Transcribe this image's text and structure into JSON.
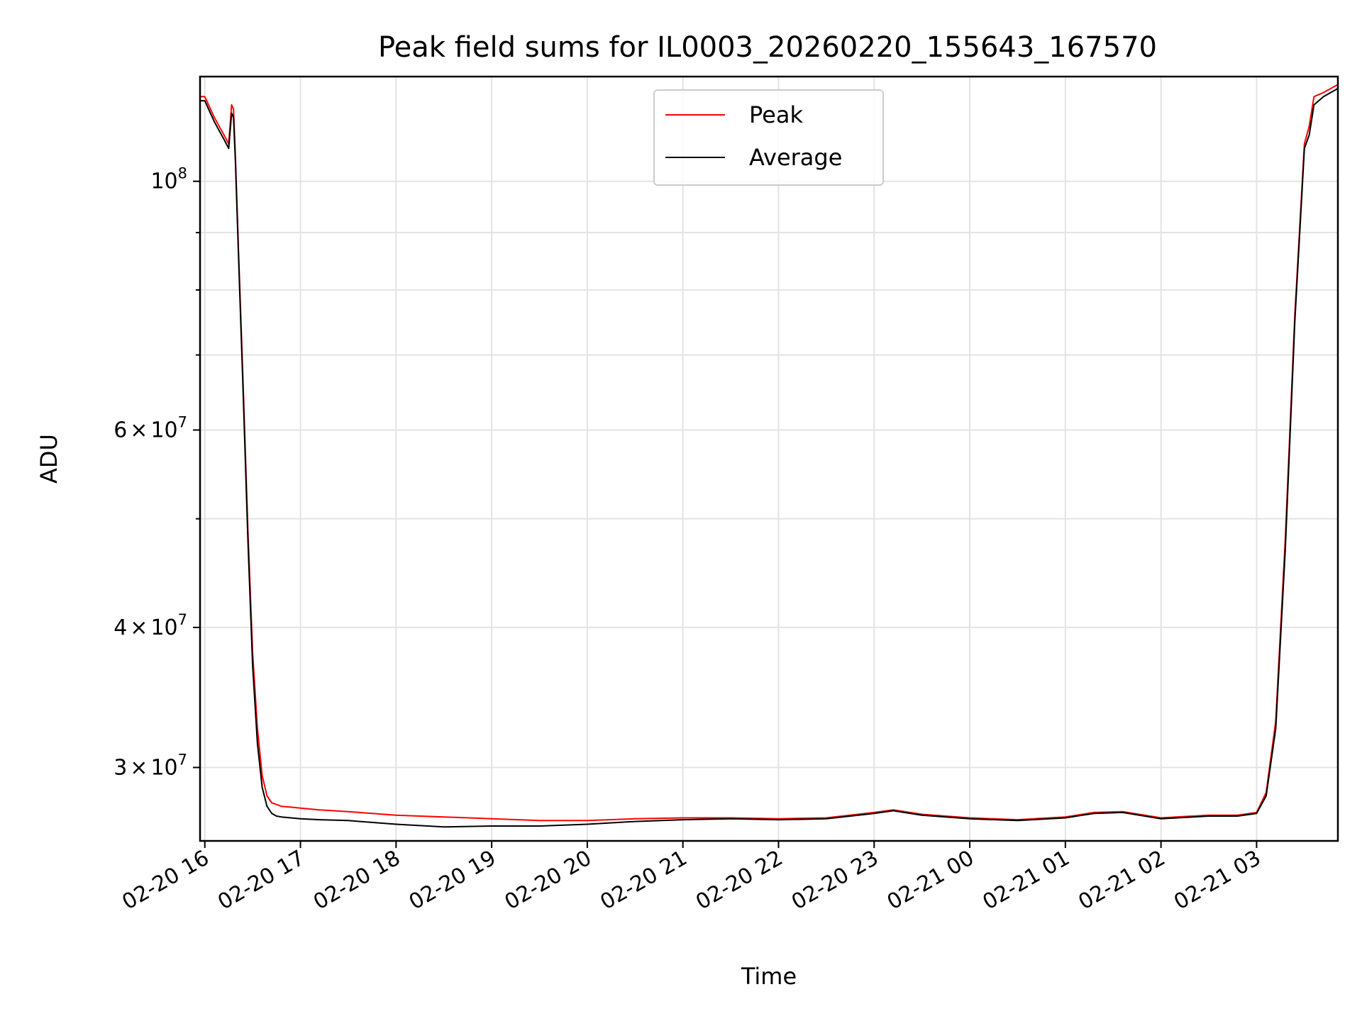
{
  "chart_data": {
    "type": "line",
    "title": "Peak field sums for IL0003_20260220_155643_167570",
    "xlabel": "Time",
    "ylabel": "ADU",
    "yscale": "log",
    "grid": true,
    "legend_position": "top-center",
    "x_unit": "hours since 02-20 16:00",
    "xlim": [
      -0.05,
      11.85
    ],
    "ylim": [
      25800000,
      124000000
    ],
    "x_ticks": [
      {
        "value": 0,
        "label": "02-20 16"
      },
      {
        "value": 1,
        "label": "02-20 17"
      },
      {
        "value": 2,
        "label": "02-20 18"
      },
      {
        "value": 3,
        "label": "02-20 19"
      },
      {
        "value": 4,
        "label": "02-20 20"
      },
      {
        "value": 5,
        "label": "02-20 21"
      },
      {
        "value": 6,
        "label": "02-20 22"
      },
      {
        "value": 7,
        "label": "02-20 23"
      },
      {
        "value": 8,
        "label": "02-21 00"
      },
      {
        "value": 9,
        "label": "02-21 01"
      },
      {
        "value": 10,
        "label": "02-21 02"
      },
      {
        "value": 11,
        "label": "02-21 03"
      }
    ],
    "y_major_ticks": [
      {
        "value": 30000000,
        "mantissa": "3",
        "exponent": "7"
      },
      {
        "value": 40000000,
        "mantissa": "4",
        "exponent": "7"
      },
      {
        "value": 60000000,
        "mantissa": "6",
        "exponent": "7"
      },
      {
        "value": 100000000,
        "mantissa": "",
        "exponent": "8"
      }
    ],
    "y_minor_ticks": [
      50000000,
      70000000,
      80000000,
      90000000
    ],
    "series": [
      {
        "name": "Peak",
        "color": "#ff0000",
        "x": [
          -0.05,
          0.0,
          0.1,
          0.2,
          0.25,
          0.28,
          0.3,
          0.32,
          0.35,
          0.4,
          0.45,
          0.5,
          0.55,
          0.6,
          0.65,
          0.7,
          0.75,
          0.8,
          0.9,
          1.0,
          1.2,
          1.5,
          2.0,
          2.5,
          3.0,
          3.5,
          4.0,
          4.5,
          5.0,
          5.5,
          6.0,
          6.5,
          7.0,
          7.2,
          7.5,
          8.0,
          8.5,
          9.0,
          9.3,
          9.6,
          10.0,
          10.5,
          10.8,
          11.0,
          11.1,
          11.2,
          11.3,
          11.4,
          11.5,
          11.55,
          11.6,
          11.7,
          11.85
        ],
        "y": [
          119000000,
          119000000,
          114000000,
          110000000,
          108000000,
          117000000,
          116000000,
          105000000,
          88000000,
          66000000,
          49000000,
          38000000,
          32500000,
          29500000,
          28300000,
          27900000,
          27800000,
          27700000,
          27650000,
          27600000,
          27500000,
          27400000,
          27200000,
          27100000,
          27000000,
          26900000,
          26900000,
          27000000,
          27050000,
          27050000,
          27000000,
          27050000,
          27350000,
          27500000,
          27250000,
          27050000,
          26950000,
          27100000,
          27350000,
          27400000,
          27050000,
          27200000,
          27200000,
          27350000,
          28500000,
          33000000,
          48000000,
          76000000,
          108000000,
          112000000,
          119000000,
          120000000,
          122000000
        ]
      },
      {
        "name": "Average",
        "color": "#000000",
        "x": [
          -0.05,
          0.0,
          0.1,
          0.2,
          0.25,
          0.28,
          0.3,
          0.32,
          0.35,
          0.4,
          0.45,
          0.5,
          0.55,
          0.6,
          0.65,
          0.7,
          0.75,
          0.8,
          0.9,
          1.0,
          1.2,
          1.5,
          2.0,
          2.5,
          3.0,
          3.5,
          4.0,
          4.5,
          5.0,
          5.5,
          6.0,
          6.5,
          7.0,
          7.2,
          7.5,
          8.0,
          8.5,
          9.0,
          9.3,
          9.6,
          10.0,
          10.5,
          10.8,
          11.0,
          11.1,
          11.2,
          11.3,
          11.4,
          11.5,
          11.55,
          11.6,
          11.7,
          11.85
        ],
        "y": [
          118000000,
          118000000,
          113000000,
          109000000,
          107000000,
          115000000,
          114000000,
          104000000,
          87000000,
          65000000,
          48000000,
          37000000,
          31500000,
          28800000,
          27700000,
          27300000,
          27150000,
          27100000,
          27050000,
          27000000,
          26950000,
          26900000,
          26700000,
          26550000,
          26600000,
          26600000,
          26700000,
          26850000,
          26950000,
          27000000,
          26950000,
          27000000,
          27300000,
          27450000,
          27200000,
          27000000,
          26900000,
          27050000,
          27300000,
          27350000,
          27000000,
          27150000,
          27150000,
          27300000,
          28300000,
          32500000,
          47000000,
          75000000,
          107000000,
          110000000,
          117000000,
          119000000,
          121000000
        ]
      }
    ]
  }
}
